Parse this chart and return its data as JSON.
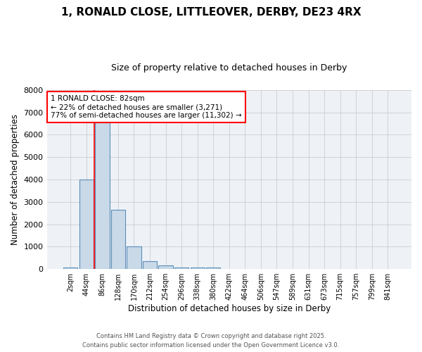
{
  "title_line1": "1, RONALD CLOSE, LITTLEOVER, DERBY, DE23 4RX",
  "title_line2": "Size of property relative to detached houses in Derby",
  "xlabel": "Distribution of detached houses by size in Derby",
  "ylabel": "Number of detached properties",
  "categories": [
    "2sqm",
    "44sqm",
    "86sqm",
    "128sqm",
    "170sqm",
    "212sqm",
    "254sqm",
    "296sqm",
    "338sqm",
    "380sqm",
    "422sqm",
    "464sqm",
    "506sqm",
    "547sqm",
    "589sqm",
    "631sqm",
    "673sqm",
    "715sqm",
    "757sqm",
    "799sqm",
    "841sqm"
  ],
  "values": [
    50,
    4000,
    6600,
    2650,
    1000,
    350,
    150,
    80,
    50,
    50,
    0,
    0,
    0,
    0,
    0,
    0,
    0,
    0,
    0,
    0,
    0
  ],
  "bar_color": "#c9d9e8",
  "bar_edge_color": "#5b8db8",
  "bar_edge_width": 0.8,
  "vline_color": "red",
  "vline_x": 1.5,
  "annotation_text": "1 RONALD CLOSE: 82sqm\n← 22% of detached houses are smaller (3,271)\n77% of semi-detached houses are larger (11,302) →",
  "annotation_box_color": "red",
  "ylim": [
    0,
    8000
  ],
  "yticks": [
    0,
    1000,
    2000,
    3000,
    4000,
    5000,
    6000,
    7000,
    8000
  ],
  "grid_color": "#cccccc",
  "background_color": "#eef2f7",
  "footer_line1": "Contains HM Land Registry data © Crown copyright and database right 2025.",
  "footer_line2": "Contains public sector information licensed under the Open Government Licence v3.0."
}
